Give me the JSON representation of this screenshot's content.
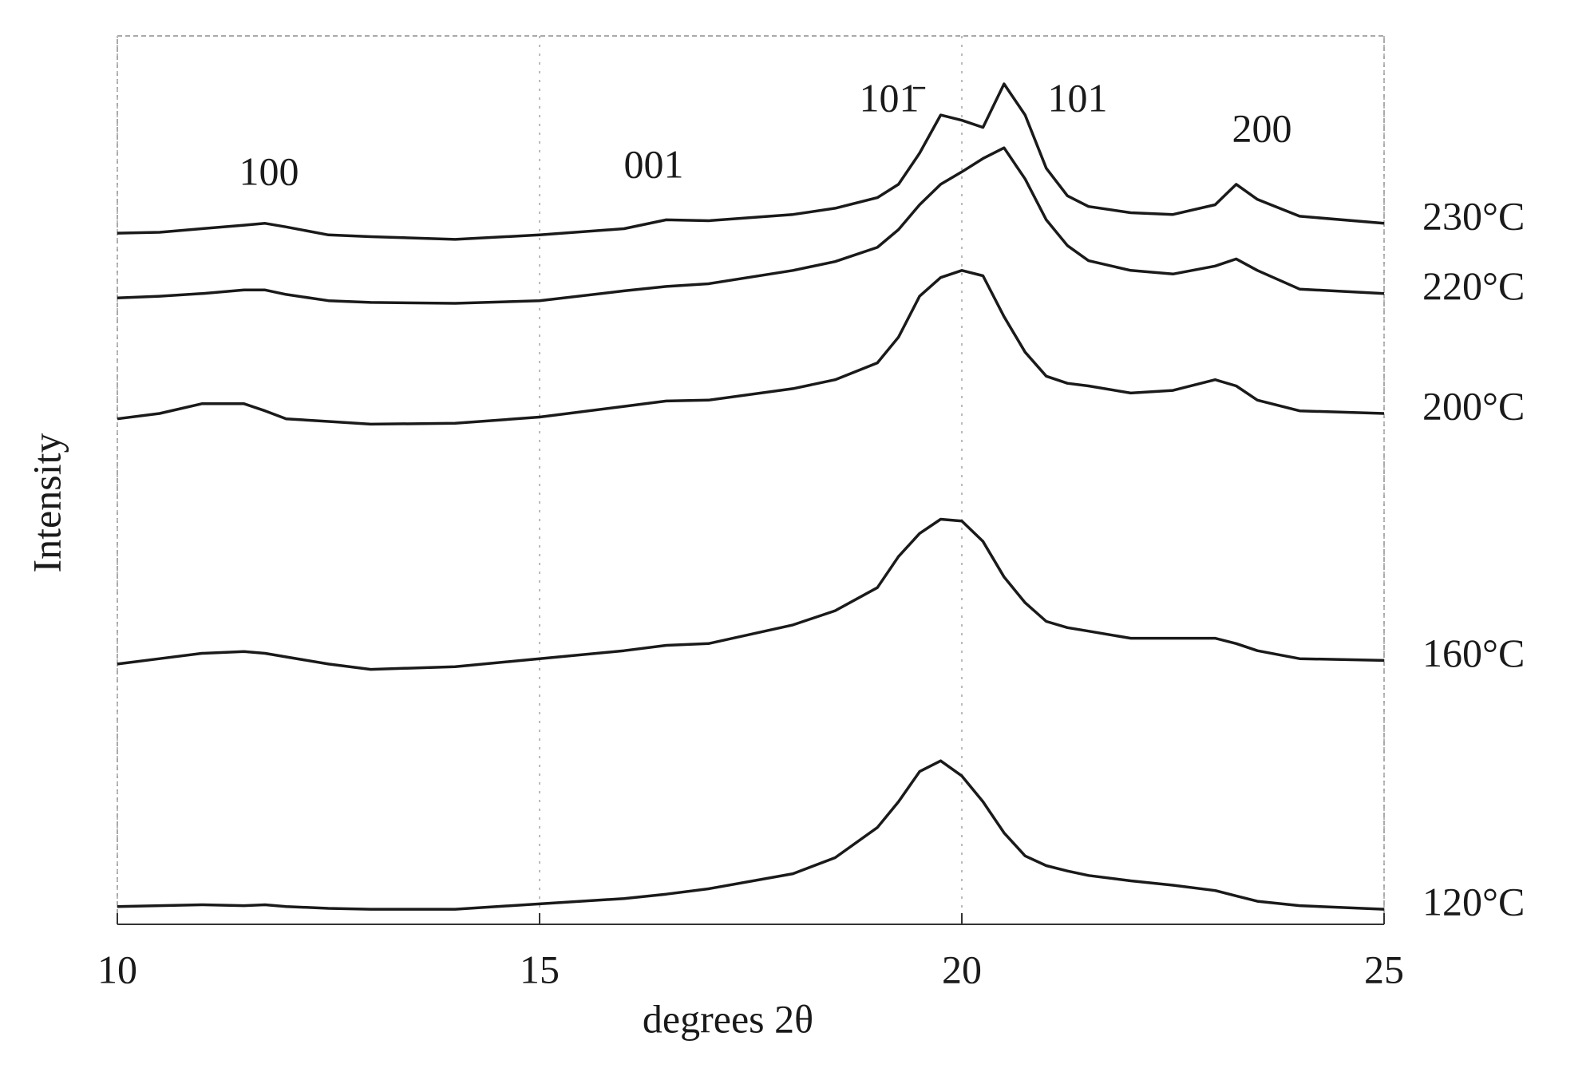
{
  "chart_data": {
    "type": "line",
    "xlabel": "degrees 2θ",
    "ylabel": "Intensity",
    "x": [
      10,
      10.5,
      11,
      11.5,
      11.75,
      12,
      12.5,
      13,
      14,
      15,
      16,
      16.5,
      17,
      18,
      18.5,
      19,
      19.25,
      19.5,
      19.75,
      20,
      20.25,
      20.5,
      20.75,
      21,
      21.25,
      21.5,
      22,
      22.5,
      23,
      23.25,
      23.5,
      24,
      25
    ],
    "xlim": [
      10,
      25
    ],
    "xticks": [
      10,
      15,
      20,
      25
    ],
    "ylim": [
      0,
      100
    ],
    "grid": true,
    "series": [
      {
        "name": "230°C",
        "color": "#1a1a1a",
        "values": [
          77.8,
          77.9,
          78.3,
          78.7,
          78.9,
          78.5,
          77.6,
          77.4,
          77.1,
          77.6,
          78.3,
          79.3,
          79.2,
          79.9,
          80.6,
          81.8,
          83.3,
          86.8,
          91.1,
          90.5,
          89.7,
          94.6,
          91.1,
          85.1,
          82.0,
          80.8,
          80.1,
          79.9,
          81.0,
          83.3,
          81.6,
          79.7,
          78.9
        ]
      },
      {
        "name": "220°C",
        "color": "#1a1a1a",
        "values": [
          70.5,
          70.7,
          71.0,
          71.4,
          71.4,
          70.9,
          70.2,
          70.0,
          69.9,
          70.2,
          71.3,
          71.8,
          72.1,
          73.6,
          74.6,
          76.2,
          78.2,
          81.0,
          83.3,
          84.7,
          86.2,
          87.4,
          83.9,
          79.3,
          76.4,
          74.7,
          73.6,
          73.2,
          74.1,
          74.9,
          73.6,
          71.5,
          71.0
        ]
      },
      {
        "name": "200°C",
        "color": "#1a1a1a",
        "values": [
          56.9,
          57.5,
          58.6,
          58.6,
          57.8,
          56.9,
          56.6,
          56.3,
          56.4,
          57.1,
          58.3,
          58.9,
          59.0,
          60.3,
          61.3,
          63.2,
          66.1,
          70.7,
          72.8,
          73.6,
          73.0,
          68.4,
          64.4,
          61.7,
          60.9,
          60.6,
          59.8,
          60.1,
          61.3,
          60.6,
          59.0,
          57.8,
          57.5
        ]
      },
      {
        "name": "160°C",
        "color": "#1a1a1a",
        "values": [
          29.3,
          29.9,
          30.5,
          30.7,
          30.5,
          30.1,
          29.3,
          28.7,
          29.0,
          29.9,
          30.8,
          31.4,
          31.6,
          33.7,
          35.3,
          37.9,
          41.4,
          44.0,
          45.6,
          45.4,
          43.1,
          39.1,
          36.2,
          34.1,
          33.4,
          33.0,
          32.2,
          32.2,
          32.2,
          31.6,
          30.8,
          29.9,
          29.7
        ]
      },
      {
        "name": "120°C",
        "color": "#1a1a1a",
        "values": [
          2.0,
          2.1,
          2.2,
          2.1,
          2.2,
          2.0,
          1.8,
          1.7,
          1.7,
          2.3,
          2.9,
          3.4,
          4.0,
          5.7,
          7.5,
          10.9,
          13.8,
          17.2,
          18.4,
          16.7,
          13.8,
          10.3,
          7.7,
          6.6,
          6.0,
          5.5,
          4.9,
          4.4,
          3.8,
          3.2,
          2.6,
          2.1,
          1.7
        ]
      }
    ],
    "annotations": [
      "100",
      "001",
      "101̄",
      "101",
      "200"
    ]
  }
}
